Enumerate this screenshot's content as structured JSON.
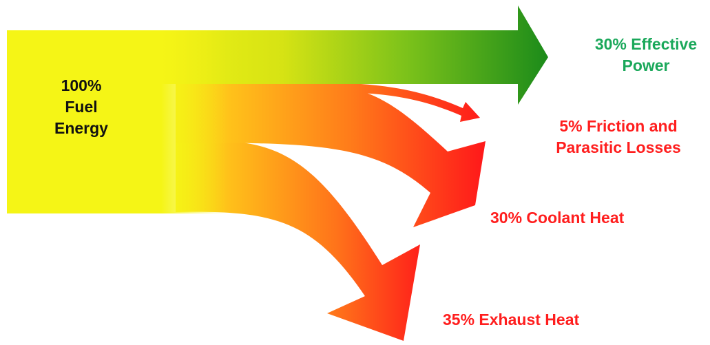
{
  "source": {
    "lines": [
      "100%",
      "Fuel",
      "Energy"
    ],
    "color": "#111111"
  },
  "outputs": [
    {
      "id": "effective",
      "lines": [
        "30% Effective",
        "Power"
      ],
      "percent": 30,
      "color": "#1aa85a",
      "gradient": [
        "#e6ea12",
        "#1e8a1a"
      ]
    },
    {
      "id": "friction",
      "lines": [
        "5% Friction and",
        "Parasitic Losses"
      ],
      "percent": 5,
      "color": "#ff1e1e",
      "gradient": [
        "#ffb31a",
        "#ff1a1a"
      ]
    },
    {
      "id": "coolant",
      "lines": [
        "30% Coolant Heat"
      ],
      "percent": 30,
      "color": "#ff1e1e",
      "gradient": [
        "#ffb31a",
        "#ff1a1a"
      ]
    },
    {
      "id": "exhaust",
      "lines": [
        "35% Exhaust Heat"
      ],
      "percent": 35,
      "color": "#ff1e1e",
      "gradient": [
        "#ffb31a",
        "#ff1a1a"
      ]
    }
  ],
  "colors": {
    "source_fill": "#f5f516",
    "heat_start": "#ffb31a",
    "heat_end": "#ff1a1a",
    "power_end": "#1e8a1a"
  }
}
